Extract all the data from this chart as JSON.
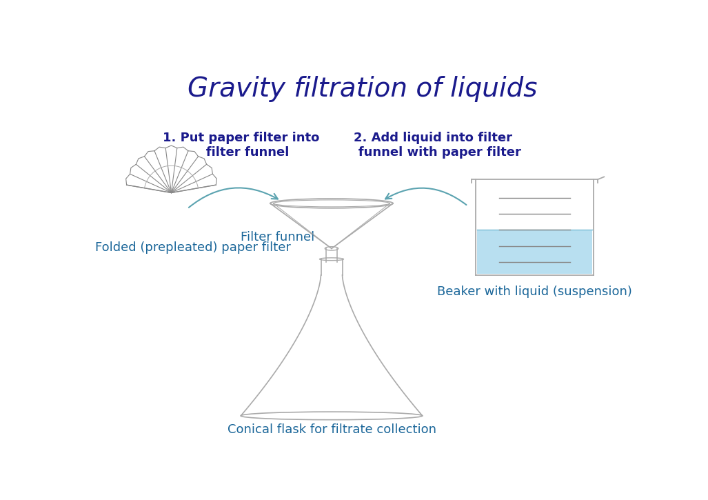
{
  "title": "Gravity filtration of liquids",
  "title_color": "#1a1a8c",
  "title_fontsize": 28,
  "bg_color": "#ffffff",
  "label_color": "#1a6699",
  "label_fontsize": 13,
  "step_color": "#1a1a8c",
  "step_fontsize": 13,
  "outline_color": "#aaaaaa",
  "arrow_color": "#5ba3b0",
  "liquid_color": "#b8dff0",
  "labels": {
    "paper_filter": "Folded (prepleated) paper filter",
    "filter_funnel": "Filter funnel",
    "conical_flask": "Conical flask for filtrate collection",
    "beaker": "Beaker with liquid (suspension)"
  },
  "steps": {
    "step1": "1. Put paper filter into\n   filter funnel",
    "step2": "2. Add liquid into filter\n   funnel with paper filter"
  }
}
